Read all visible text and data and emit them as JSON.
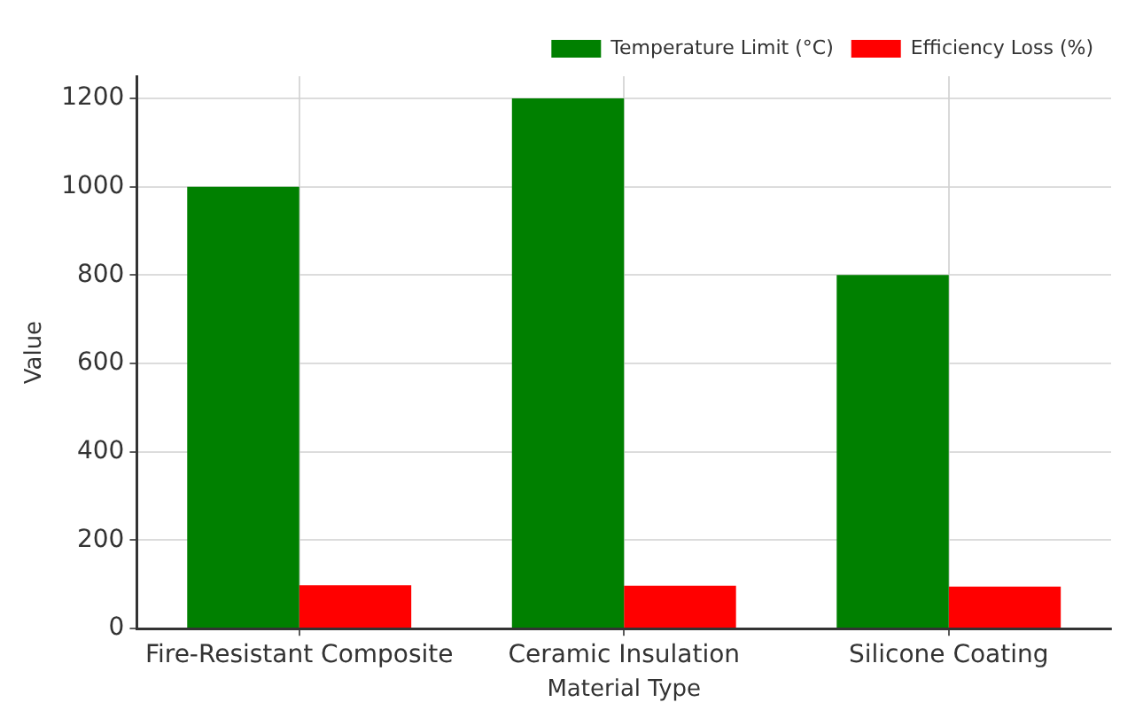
{
  "chart_data": {
    "type": "bar",
    "xlabel": "Material Type",
    "ylabel": "Value",
    "categories": [
      "Fire-Resistant Composite",
      "Ceramic Insulation",
      "Silicone Coating"
    ],
    "series": [
      {
        "name": "Temperature Limit (°C)",
        "color": "#008000",
        "values": [
          1000,
          1200,
          800
        ]
      },
      {
        "name": "Efficiency Loss (%)",
        "color": "#ff0000",
        "values": [
          98,
          97,
          95
        ]
      }
    ],
    "ylim": [
      0,
      1250
    ],
    "yticks": [
      0,
      200,
      400,
      600,
      800,
      1000,
      1200
    ],
    "grid": true,
    "legend": "top right"
  }
}
